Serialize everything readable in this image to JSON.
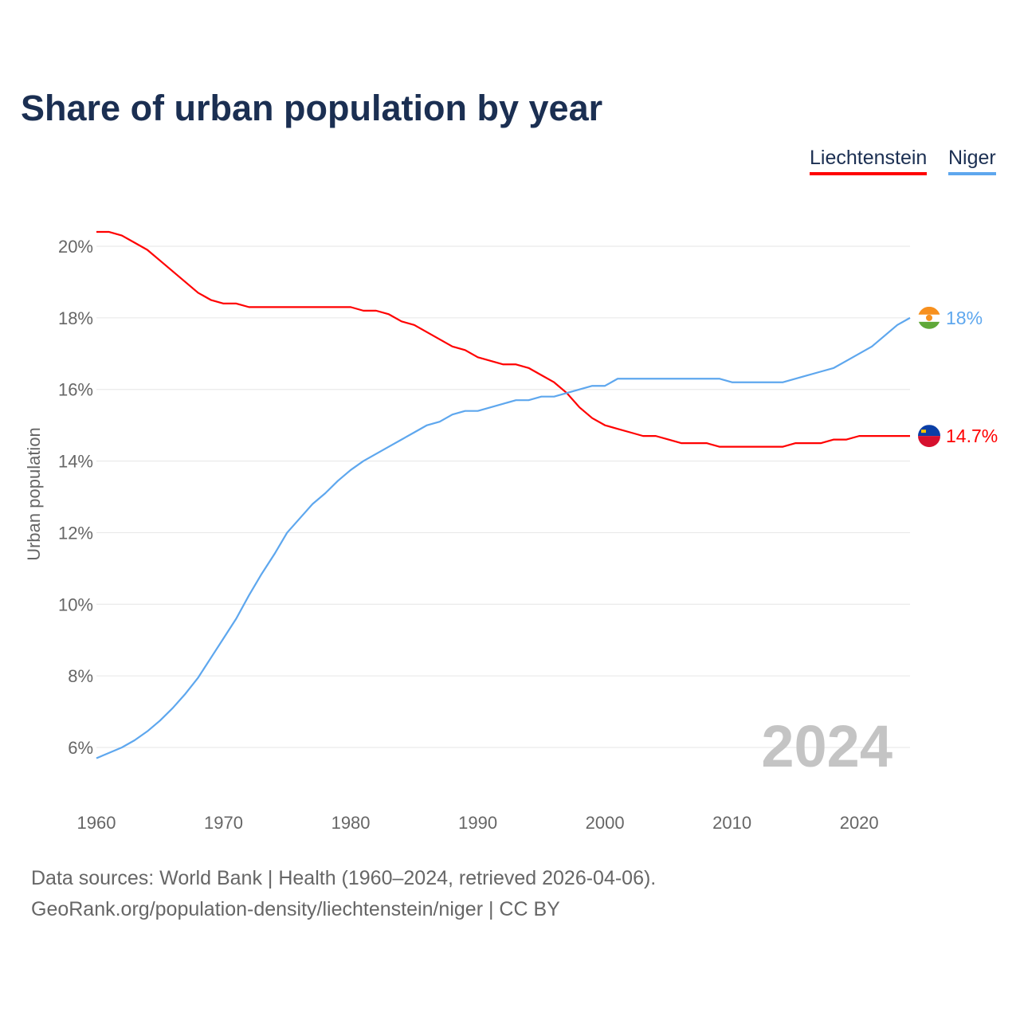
{
  "chart_data": {
    "type": "line",
    "title": "Share of urban population by year",
    "xlabel": "",
    "ylabel": "Urban population",
    "xlim": [
      1960,
      2024
    ],
    "ylim": [
      5,
      21
    ],
    "grid": true,
    "legend_placement": "top-right",
    "x_ticks": [
      "1960",
      "1970",
      "1980",
      "1990",
      "2000",
      "2010",
      "2020"
    ],
    "y_ticks": [
      "6%",
      "8%",
      "10%",
      "12%",
      "14%",
      "16%",
      "18%",
      "20%"
    ],
    "year_watermark": "2024",
    "x": [
      1960,
      1961,
      1962,
      1963,
      1964,
      1965,
      1966,
      1967,
      1968,
      1969,
      1970,
      1971,
      1972,
      1973,
      1974,
      1975,
      1976,
      1977,
      1978,
      1979,
      1980,
      1981,
      1982,
      1983,
      1984,
      1985,
      1986,
      1987,
      1988,
      1989,
      1990,
      1991,
      1992,
      1993,
      1994,
      1995,
      1996,
      1997,
      1998,
      1999,
      2000,
      2001,
      2002,
      2003,
      2004,
      2005,
      2006,
      2007,
      2008,
      2009,
      2010,
      2011,
      2012,
      2013,
      2014,
      2015,
      2016,
      2017,
      2018,
      2019,
      2020,
      2021,
      2022,
      2023,
      2024
    ],
    "series": [
      {
        "name": "Liechtenstein",
        "color": "#ff0000",
        "end_label": "14.7%",
        "values": [
          20.4,
          20.4,
          20.3,
          20.1,
          19.9,
          19.6,
          19.3,
          19.0,
          18.7,
          18.5,
          18.4,
          18.4,
          18.3,
          18.3,
          18.3,
          18.3,
          18.3,
          18.3,
          18.3,
          18.3,
          18.3,
          18.2,
          18.2,
          18.1,
          17.9,
          17.8,
          17.6,
          17.4,
          17.2,
          17.1,
          16.9,
          16.8,
          16.7,
          16.7,
          16.6,
          16.4,
          16.2,
          15.9,
          15.5,
          15.2,
          15.0,
          14.9,
          14.8,
          14.7,
          14.7,
          14.6,
          14.5,
          14.5,
          14.5,
          14.4,
          14.4,
          14.4,
          14.4,
          14.4,
          14.4,
          14.5,
          14.5,
          14.5,
          14.6,
          14.6,
          14.7,
          14.7,
          14.7,
          14.7,
          14.7
        ]
      },
      {
        "name": "Niger",
        "color": "#5ea7ee",
        "end_label": "18%",
        "values": [
          5.7,
          5.85,
          6.0,
          6.2,
          6.45,
          6.75,
          7.1,
          7.5,
          7.95,
          8.5,
          9.05,
          9.6,
          10.25,
          10.85,
          11.4,
          12.0,
          12.4,
          12.8,
          13.1,
          13.45,
          13.75,
          14.0,
          14.2,
          14.4,
          14.6,
          14.8,
          15.0,
          15.1,
          15.3,
          15.4,
          15.4,
          15.5,
          15.6,
          15.7,
          15.7,
          15.8,
          15.8,
          15.9,
          16.0,
          16.1,
          16.1,
          16.3,
          16.3,
          16.3,
          16.3,
          16.3,
          16.3,
          16.3,
          16.3,
          16.3,
          16.2,
          16.2,
          16.2,
          16.2,
          16.2,
          16.3,
          16.4,
          16.5,
          16.6,
          16.8,
          17.0,
          17.2,
          17.5,
          17.8,
          18.0
        ]
      }
    ]
  },
  "footer": {
    "line1": "Data sources: World Bank | Health (1960–2024, retrieved 2026-04-06).",
    "line2": "GeoRank.org/population-density/liechtenstein/niger | CC BY"
  }
}
